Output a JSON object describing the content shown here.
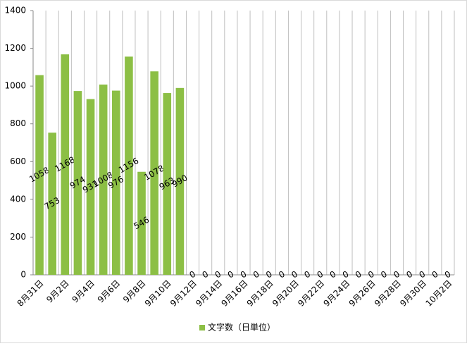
{
  "chart_data": {
    "type": "bar",
    "categories": [
      "8月31日",
      null,
      "9月2日",
      null,
      "9月4日",
      null,
      "9月6日",
      null,
      "9月8日",
      null,
      "9月10日",
      null,
      "9月12日",
      null,
      "9月14日",
      null,
      "9月16日",
      null,
      "9月18日",
      null,
      "9月20日",
      null,
      "9月22日",
      null,
      "9月24日",
      null,
      "9月26日",
      null,
      "9月28日",
      null,
      "9月30日",
      null,
      "10月2日"
    ],
    "series": [
      {
        "name": "文字数（日単位）",
        "color": "#8cbf45",
        "values": [
          1058,
          753,
          1168,
          974,
          931,
          1008,
          976,
          1156,
          546,
          1078,
          963,
          990,
          0,
          0,
          0,
          0,
          0,
          0,
          0,
          0,
          0,
          0,
          0,
          0,
          0,
          0,
          0,
          0,
          0,
          0,
          0,
          0,
          0
        ]
      }
    ],
    "ylim": [
      0,
      1400
    ],
    "yticks": [
      0,
      200,
      400,
      600,
      800,
      1000,
      1200,
      1400
    ],
    "grid": "x",
    "legend": "bottom"
  }
}
